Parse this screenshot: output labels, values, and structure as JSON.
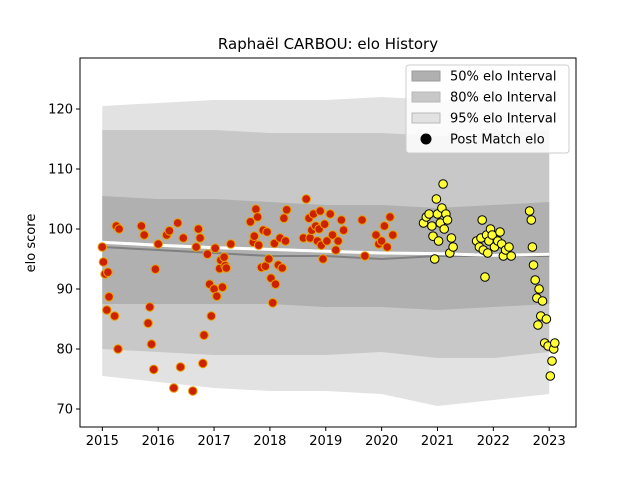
{
  "chart_data": {
    "type": "scatter",
    "title": "Raphaël CARBOU: elo History",
    "xlabel": "",
    "ylabel": "elo score",
    "xlim": [
      2014.6,
      2023.48
    ],
    "ylim": [
      67,
      128.5
    ],
    "x_ticks": [
      2015,
      2016,
      2017,
      2018,
      2019,
      2020,
      2021,
      2022,
      2023
    ],
    "x_tick_labels": [
      "2015",
      "2016",
      "2017",
      "2018",
      "2019",
      "2020",
      "2021",
      "2022",
      "2023"
    ],
    "y_ticks": [
      70,
      80,
      90,
      100,
      110,
      120
    ],
    "y_tick_labels": [
      "70",
      "80",
      "90",
      "100",
      "110",
      "120"
    ],
    "grid": false,
    "legend": {
      "placement": "top-right",
      "entries": [
        "50% elo Interval",
        "80% elo Interval",
        "95% elo Interval",
        "Post Match elo"
      ]
    },
    "colors": {
      "band_50": "#b0b0b0",
      "band_80": "#c8c8c8",
      "band_95": "#e2e2e2",
      "median_line": "#808080",
      "trend_line": "#ffffff",
      "point_early_fill": "#cc2200",
      "point_early_edge": "#e8a000",
      "point_late_fill": "#ffff33",
      "point_late_edge": "#000000"
    },
    "bands": [
      {
        "name": "95% elo Interval",
        "x": [
          2015.0,
          2016.0,
          2017.0,
          2018.0,
          2019.0,
          2020.0,
          2021.0,
          2022.0,
          2023.0
        ],
        "lower": [
          75.5,
          74.5,
          73.5,
          73.0,
          73.0,
          72.5,
          70.5,
          71.5,
          72.5
        ],
        "upper": [
          120.5,
          121.0,
          121.5,
          121.5,
          121.5,
          122.0,
          121.5,
          122.0,
          122.0
        ]
      },
      {
        "name": "80% elo Interval",
        "x": [
          2015.0,
          2016.0,
          2017.0,
          2018.0,
          2019.0,
          2020.0,
          2021.0,
          2022.0,
          2023.0
        ],
        "lower": [
          80.0,
          79.5,
          79.0,
          79.0,
          79.0,
          79.5,
          78.5,
          78.5,
          79.5
        ],
        "upper": [
          116.5,
          116.5,
          116.5,
          116.0,
          116.0,
          116.0,
          115.5,
          116.0,
          116.5
        ]
      },
      {
        "name": "50% elo Interval",
        "x": [
          2015.0,
          2016.0,
          2017.0,
          2018.0,
          2019.0,
          2020.0,
          2021.0,
          2022.0,
          2023.0
        ],
        "lower": [
          87.5,
          87.5,
          87.5,
          87.5,
          87.0,
          87.0,
          86.5,
          87.0,
          87.5
        ],
        "upper": [
          105.5,
          105.0,
          105.0,
          104.5,
          104.0,
          104.0,
          103.5,
          104.0,
          104.5
        ]
      }
    ],
    "median_line": {
      "x": [
        2015.0,
        2016.0,
        2017.0,
        2018.0,
        2019.0,
        2020.0,
        2021.0,
        2022.0,
        2023.0
      ],
      "y": [
        97.0,
        96.5,
        96.0,
        95.5,
        95.5,
        95.0,
        95.5,
        95.5,
        95.5
      ]
    },
    "trend_line": {
      "x": [
        2015.0,
        2016.0,
        2017.0,
        2018.0,
        2019.0,
        2020.0,
        2021.0,
        2022.0,
        2023.0
      ],
      "y": [
        97.8,
        97.3,
        96.9,
        96.6,
        96.3,
        96.0,
        95.9,
        95.6,
        95.8
      ]
    },
    "series": [
      {
        "name": "Post Match elo",
        "points": [
          [
            2015.0,
            97.0
          ],
          [
            2015.02,
            94.5
          ],
          [
            2015.05,
            92.5
          ],
          [
            2015.08,
            86.5
          ],
          [
            2015.1,
            92.8
          ],
          [
            2015.12,
            88.7
          ],
          [
            2015.22,
            85.5
          ],
          [
            2015.25,
            100.5
          ],
          [
            2015.28,
            80.0
          ],
          [
            2015.3,
            100.0
          ],
          [
            2015.7,
            100.5
          ],
          [
            2015.75,
            99.0
          ],
          [
            2015.82,
            84.3
          ],
          [
            2015.85,
            87.0
          ],
          [
            2015.88,
            80.8
          ],
          [
            2015.92,
            76.6
          ],
          [
            2015.95,
            93.3
          ],
          [
            2016.0,
            97.5
          ],
          [
            2016.15,
            99.0
          ],
          [
            2016.2,
            99.7
          ],
          [
            2016.28,
            73.5
          ],
          [
            2016.35,
            101.0
          ],
          [
            2016.4,
            77.0
          ],
          [
            2016.45,
            98.5
          ],
          [
            2016.62,
            73.0
          ],
          [
            2016.68,
            97.0
          ],
          [
            2016.72,
            100.0
          ],
          [
            2016.75,
            98.5
          ],
          [
            2016.8,
            77.6
          ],
          [
            2016.82,
            82.3
          ],
          [
            2016.88,
            95.8
          ],
          [
            2016.92,
            90.8
          ],
          [
            2016.95,
            85.5
          ],
          [
            2017.0,
            90.0
          ],
          [
            2017.02,
            96.8
          ],
          [
            2017.05,
            88.8
          ],
          [
            2017.1,
            93.4
          ],
          [
            2017.12,
            94.8
          ],
          [
            2017.15,
            90.3
          ],
          [
            2017.18,
            95.3
          ],
          [
            2017.2,
            93.9
          ],
          [
            2017.22,
            93.5
          ],
          [
            2017.3,
            97.5
          ],
          [
            2017.65,
            101.2
          ],
          [
            2017.7,
            97.8
          ],
          [
            2017.72,
            98.8
          ],
          [
            2017.75,
            103.3
          ],
          [
            2017.78,
            102.0
          ],
          [
            2017.8,
            97.3
          ],
          [
            2017.85,
            93.6
          ],
          [
            2017.88,
            99.8
          ],
          [
            2017.92,
            93.8
          ],
          [
            2017.95,
            99.5
          ],
          [
            2017.98,
            95.0
          ],
          [
            2018.02,
            91.8
          ],
          [
            2018.05,
            87.7
          ],
          [
            2018.08,
            97.6
          ],
          [
            2018.1,
            90.8
          ],
          [
            2018.15,
            94.0
          ],
          [
            2018.18,
            98.5
          ],
          [
            2018.22,
            93.5
          ],
          [
            2018.25,
            101.8
          ],
          [
            2018.28,
            98.0
          ],
          [
            2018.3,
            103.2
          ],
          [
            2018.6,
            98.5
          ],
          [
            2018.65,
            105.0
          ],
          [
            2018.7,
            101.8
          ],
          [
            2018.72,
            98.5
          ],
          [
            2018.75,
            99.8
          ],
          [
            2018.78,
            102.5
          ],
          [
            2018.82,
            100.5
          ],
          [
            2018.85,
            98.0
          ],
          [
            2018.88,
            100.0
          ],
          [
            2018.9,
            103.0
          ],
          [
            2018.92,
            97.3
          ],
          [
            2018.95,
            95.0
          ],
          [
            2018.98,
            100.8
          ],
          [
            2019.02,
            98.0
          ],
          [
            2019.08,
            102.5
          ],
          [
            2019.12,
            99.0
          ],
          [
            2019.18,
            96.5
          ],
          [
            2019.22,
            98.0
          ],
          [
            2019.28,
            101.5
          ],
          [
            2019.32,
            99.8
          ],
          [
            2019.65,
            101.5
          ],
          [
            2019.7,
            95.5
          ],
          [
            2019.9,
            99.0
          ],
          [
            2019.95,
            97.5
          ],
          [
            2020.0,
            98.0
          ],
          [
            2020.05,
            100.5
          ],
          [
            2020.1,
            97.0
          ],
          [
            2020.15,
            102.0
          ],
          [
            2020.2,
            99.0
          ],
          [
            2020.75,
            101.0
          ],
          [
            2020.8,
            102.0
          ],
          [
            2020.85,
            102.5
          ],
          [
            2020.9,
            100.5
          ],
          [
            2020.92,
            98.8
          ],
          [
            2020.95,
            95.0
          ],
          [
            2020.98,
            105.0
          ],
          [
            2021.0,
            102.5
          ],
          [
            2021.02,
            98.0
          ],
          [
            2021.05,
            101.0
          ],
          [
            2021.08,
            103.5
          ],
          [
            2021.1,
            107.5
          ],
          [
            2021.12,
            100.0
          ],
          [
            2021.15,
            102.5
          ],
          [
            2021.18,
            101.5
          ],
          [
            2021.22,
            96.0
          ],
          [
            2021.25,
            98.5
          ],
          [
            2021.28,
            97.0
          ],
          [
            2021.7,
            98.0
          ],
          [
            2021.75,
            97.0
          ],
          [
            2021.78,
            98.5
          ],
          [
            2021.8,
            101.5
          ],
          [
            2021.82,
            96.5
          ],
          [
            2021.85,
            92.0
          ],
          [
            2021.88,
            99.0
          ],
          [
            2021.9,
            96.0
          ],
          [
            2021.92,
            98.0
          ],
          [
            2021.95,
            100.0
          ],
          [
            2021.98,
            99.0
          ],
          [
            2022.02,
            97.0
          ],
          [
            2022.08,
            98.0
          ],
          [
            2022.12,
            99.5
          ],
          [
            2022.15,
            97.5
          ],
          [
            2022.18,
            95.5
          ],
          [
            2022.22,
            96.5
          ],
          [
            2022.28,
            97.0
          ],
          [
            2022.32,
            95.5
          ],
          [
            2022.65,
            103.0
          ],
          [
            2022.68,
            101.5
          ],
          [
            2022.7,
            97.0
          ],
          [
            2022.72,
            94.0
          ],
          [
            2022.75,
            91.5
          ],
          [
            2022.78,
            88.5
          ],
          [
            2022.8,
            84.0
          ],
          [
            2022.82,
            90.0
          ],
          [
            2022.85,
            85.5
          ],
          [
            2022.88,
            88.0
          ],
          [
            2022.92,
            81.0
          ],
          [
            2022.95,
            85.0
          ],
          [
            2022.98,
            80.5
          ],
          [
            2023.02,
            75.5
          ],
          [
            2023.05,
            78.0
          ],
          [
            2023.08,
            80.0
          ],
          [
            2023.1,
            81.0
          ]
        ],
        "split_x": 2020.5
      }
    ]
  }
}
